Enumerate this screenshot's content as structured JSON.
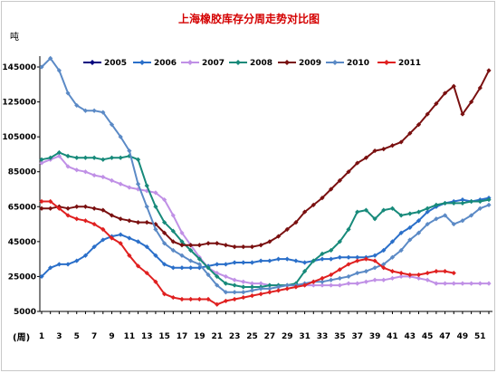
{
  "chart_data": {
    "type": "line",
    "title": "上海橡胶库存分周走势对比图",
    "ylabel": "吨",
    "xlabel": "(周)",
    "ylim": [
      5000,
      145000
    ],
    "xlim": [
      1,
      52
    ],
    "y_ticks": [
      "5000",
      "25000",
      "45000",
      "65000",
      "85000",
      "105000",
      "125000",
      "145000"
    ],
    "x_ticks": [
      "1",
      "3",
      "5",
      "7",
      "9",
      "11",
      "13",
      "15",
      "17",
      "19",
      "21",
      "23",
      "25",
      "27",
      "29",
      "31",
      "33",
      "35",
      "37",
      "39",
      "41",
      "43",
      "45",
      "47",
      "49",
      "51"
    ],
    "legend_position": "top",
    "grid": false,
    "series": [
      {
        "name": "2005",
        "color": "#000080",
        "x": [],
        "values": []
      },
      {
        "name": "2006",
        "color": "#2a6fc9",
        "x": [
          1,
          2,
          3,
          4,
          5,
          6,
          7,
          8,
          9,
          10,
          11,
          12,
          13,
          14,
          15,
          16,
          17,
          18,
          19,
          20,
          21,
          22,
          23,
          24,
          25,
          26,
          27,
          28,
          29,
          30,
          31,
          32,
          33,
          34,
          35,
          36,
          37,
          38,
          39,
          40,
          41,
          42,
          43,
          44,
          45,
          46,
          47,
          48,
          49,
          50,
          51,
          52
        ],
        "values": [
          25000,
          30000,
          32000,
          32000,
          34000,
          37000,
          42000,
          46000,
          48000,
          49000,
          47000,
          45000,
          42000,
          37000,
          32000,
          30000,
          30000,
          30000,
          30000,
          31000,
          32000,
          32000,
          33000,
          33000,
          33000,
          34000,
          34000,
          35000,
          35000,
          34000,
          33000,
          34000,
          35000,
          35000,
          36000,
          36000,
          36000,
          36000,
          37000,
          40000,
          45000,
          50000,
          53000,
          57000,
          62000,
          65000,
          67000,
          68000,
          69000,
          68000,
          69000,
          70000
        ]
      },
      {
        "name": "2007",
        "color": "#c090e6",
        "x": [
          1,
          2,
          3,
          4,
          5,
          6,
          7,
          8,
          9,
          10,
          11,
          12,
          13,
          14,
          15,
          16,
          17,
          18,
          19,
          20,
          21,
          22,
          23,
          24,
          25,
          26,
          27,
          28,
          29,
          30,
          31,
          32,
          33,
          34,
          35,
          36,
          37,
          38,
          39,
          40,
          41,
          42,
          43,
          44,
          45,
          46,
          47,
          48,
          49,
          50,
          51,
          52
        ],
        "values": [
          90000,
          92000,
          94000,
          88000,
          86000,
          85000,
          83000,
          82000,
          80000,
          78000,
          76000,
          75000,
          74000,
          73000,
          69000,
          60000,
          50000,
          43000,
          36000,
          30000,
          27000,
          25000,
          23000,
          22000,
          21000,
          21000,
          20000,
          20000,
          20000,
          20000,
          20000,
          20000,
          20000,
          20000,
          20000,
          21000,
          21000,
          22000,
          23000,
          23000,
          24000,
          25000,
          25000,
          24000,
          23000,
          21000,
          21000,
          21000,
          21000,
          21000,
          21000,
          21000
        ]
      },
      {
        "name": "2008",
        "color": "#178a7a",
        "x": [
          1,
          2,
          3,
          4,
          5,
          6,
          7,
          8,
          9,
          10,
          11,
          12,
          13,
          14,
          15,
          16,
          17,
          18,
          19,
          20,
          21,
          22,
          23,
          24,
          25,
          26,
          27,
          28,
          29,
          30,
          31,
          32,
          33,
          34,
          35,
          36,
          37,
          38,
          39,
          40,
          41,
          42,
          43,
          44,
          45,
          46,
          47,
          48,
          49,
          50,
          51,
          52
        ],
        "values": [
          92000,
          93000,
          96000,
          94000,
          93000,
          93000,
          93000,
          92000,
          93000,
          93000,
          94000,
          92000,
          77000,
          65000,
          56000,
          51000,
          45000,
          40000,
          35000,
          30000,
          25000,
          21000,
          20000,
          19000,
          19000,
          19000,
          20000,
          20000,
          20000,
          21000,
          28000,
          34000,
          38000,
          40000,
          45000,
          52000,
          62000,
          63000,
          58000,
          63000,
          64000,
          60000,
          61000,
          62000,
          64000,
          66000,
          67000,
          67000,
          67000,
          68000,
          68000,
          69000
        ]
      },
      {
        "name": "2009",
        "color": "#7a1010",
        "x": [
          1,
          2,
          3,
          4,
          5,
          6,
          7,
          8,
          9,
          10,
          11,
          12,
          13,
          14,
          15,
          16,
          17,
          18,
          19,
          20,
          21,
          22,
          23,
          24,
          25,
          26,
          27,
          28,
          29,
          30,
          31,
          32,
          33,
          34,
          35,
          36,
          37,
          38,
          39,
          40,
          41,
          42,
          43,
          44,
          45,
          46,
          47,
          48,
          49,
          50,
          51,
          52
        ],
        "values": [
          64000,
          64000,
          65000,
          64000,
          65000,
          65000,
          64000,
          63000,
          60000,
          58000,
          57000,
          56000,
          56000,
          55000,
          50000,
          45000,
          43000,
          43000,
          43000,
          44000,
          44000,
          43000,
          42000,
          42000,
          42000,
          43000,
          45000,
          48000,
          52000,
          56000,
          62000,
          66000,
          70000,
          75000,
          80000,
          85000,
          90000,
          93000,
          97000,
          98000,
          100000,
          102000,
          107000,
          112000,
          118000,
          124000,
          130000,
          134000,
          118000,
          125000,
          133000,
          143000
        ]
      },
      {
        "name": "2010",
        "color": "#5b8ac6",
        "x": [
          1,
          2,
          3,
          4,
          5,
          6,
          7,
          8,
          9,
          10,
          11,
          12,
          13,
          14,
          15,
          16,
          17,
          18,
          19,
          20,
          21,
          22,
          23,
          24,
          25,
          26,
          27,
          28,
          29,
          30,
          31,
          32,
          33,
          34,
          35,
          36,
          37,
          38,
          39,
          40,
          41,
          42,
          43,
          44,
          45,
          46,
          47,
          48,
          49,
          50,
          51,
          52
        ],
        "values": [
          145000,
          150000,
          143000,
          130000,
          123000,
          120000,
          120000,
          119000,
          112000,
          105000,
          97000,
          78000,
          65000,
          52000,
          44000,
          40000,
          37000,
          34000,
          32000,
          26000,
          20000,
          16000,
          16000,
          16000,
          17000,
          18000,
          18000,
          19000,
          20000,
          20000,
          21000,
          22000,
          22000,
          23000,
          24000,
          25000,
          27000,
          28000,
          30000,
          32000,
          36000,
          40000,
          46000,
          50000,
          55000,
          58000,
          60000,
          55000,
          57000,
          60000,
          64000,
          66000
        ]
      },
      {
        "name": "2011",
        "color": "#e02020",
        "x": [
          1,
          2,
          3,
          4,
          5,
          6,
          7,
          8,
          9,
          10,
          11,
          12,
          13,
          14,
          15,
          16,
          17,
          18,
          19,
          20,
          21,
          22,
          23,
          24,
          25,
          26,
          27,
          28,
          29,
          30,
          31,
          32,
          33,
          34,
          35,
          36,
          37,
          38,
          39,
          40,
          41,
          42,
          43,
          44,
          45,
          46,
          47,
          48
        ],
        "values": [
          68000,
          68000,
          64000,
          60000,
          58000,
          57000,
          55000,
          52000,
          47000,
          44000,
          37000,
          31000,
          27000,
          22000,
          15000,
          13000,
          12000,
          12000,
          12000,
          12000,
          9000,
          11000,
          12000,
          13000,
          14000,
          15000,
          16000,
          17000,
          18000,
          19000,
          20000,
          22000,
          24000,
          26000,
          29000,
          32000,
          34000,
          35000,
          34000,
          30000,
          28000,
          27000,
          26000,
          26000,
          27000,
          28000,
          28000,
          27000
        ]
      }
    ]
  }
}
